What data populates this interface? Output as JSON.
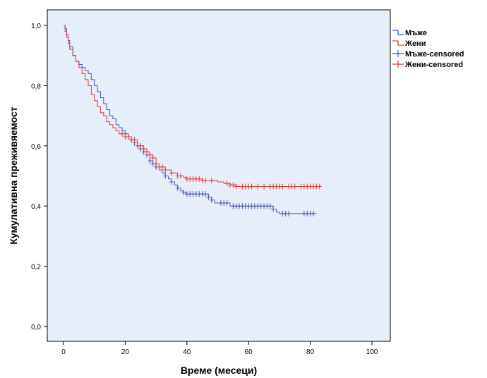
{
  "chart_data": {
    "type": "line",
    "subtype": "kaplan-meier",
    "xlabel": "Време (месеци)",
    "ylabel": "Кумулативна преживяемост",
    "xlim": [
      0,
      100
    ],
    "ylim": [
      0,
      1
    ],
    "x_ticks": [
      "0",
      "20",
      "40",
      "60",
      "80",
      "100"
    ],
    "y_ticks": [
      "0,0",
      "0,2",
      "0,4",
      "0,6",
      "0,8",
      "1,0"
    ],
    "grid": false,
    "legend_position": "right",
    "background": "#e6eef9",
    "series": [
      {
        "name": "Мъже",
        "color": "#4a5aa8",
        "steps": [
          [
            0,
            1.0
          ],
          [
            0.5,
            0.99
          ],
          [
            1,
            0.97
          ],
          [
            1.5,
            0.95
          ],
          [
            2,
            0.93
          ],
          [
            3,
            0.9
          ],
          [
            4,
            0.88
          ],
          [
            5,
            0.87
          ],
          [
            6,
            0.86
          ],
          [
            7,
            0.85
          ],
          [
            8,
            0.84
          ],
          [
            9,
            0.82
          ],
          [
            10,
            0.8
          ],
          [
            11,
            0.78
          ],
          [
            12,
            0.76
          ],
          [
            13,
            0.74
          ],
          [
            14,
            0.72
          ],
          [
            15,
            0.7
          ],
          [
            16,
            0.69
          ],
          [
            17,
            0.67
          ],
          [
            18,
            0.66
          ],
          [
            19,
            0.65
          ],
          [
            20,
            0.64
          ],
          [
            21,
            0.63
          ],
          [
            22,
            0.62
          ],
          [
            23,
            0.61
          ],
          [
            24,
            0.6
          ],
          [
            25,
            0.59
          ],
          [
            26,
            0.58
          ],
          [
            27,
            0.57
          ],
          [
            28,
            0.55
          ],
          [
            29,
            0.54
          ],
          [
            30,
            0.53
          ],
          [
            31,
            0.52
          ],
          [
            32,
            0.51
          ],
          [
            33,
            0.5
          ],
          [
            34,
            0.49
          ],
          [
            35,
            0.48
          ],
          [
            36,
            0.47
          ],
          [
            37,
            0.46
          ],
          [
            38,
            0.45
          ],
          [
            39,
            0.445
          ],
          [
            40,
            0.44
          ],
          [
            47,
            0.43
          ],
          [
            48,
            0.42
          ],
          [
            49,
            0.41
          ],
          [
            54,
            0.4
          ],
          [
            68,
            0.39
          ],
          [
            69,
            0.38
          ],
          [
            70,
            0.375
          ],
          [
            82,
            0.375
          ]
        ],
        "censored_x": [
          20,
          21,
          22,
          23,
          24,
          25,
          26,
          27,
          28,
          29,
          30,
          33,
          35,
          37,
          39,
          40,
          41,
          42,
          43,
          44,
          45,
          46,
          47,
          48,
          51,
          52,
          53,
          55,
          56,
          57,
          58,
          59,
          60,
          61,
          62,
          63,
          64,
          65,
          66,
          67,
          68,
          71,
          72,
          73,
          78,
          79,
          80,
          81
        ]
      },
      {
        "name": "Жени",
        "color": "#e03a3a",
        "steps": [
          [
            0,
            1.0
          ],
          [
            0.5,
            0.98
          ],
          [
            1,
            0.96
          ],
          [
            1.5,
            0.94
          ],
          [
            2,
            0.92
          ],
          [
            3,
            0.9
          ],
          [
            4,
            0.88
          ],
          [
            5,
            0.86
          ],
          [
            6,
            0.84
          ],
          [
            7,
            0.82
          ],
          [
            8,
            0.8
          ],
          [
            9,
            0.77
          ],
          [
            10,
            0.75
          ],
          [
            11,
            0.73
          ],
          [
            12,
            0.71
          ],
          [
            13,
            0.7
          ],
          [
            14,
            0.68
          ],
          [
            15,
            0.67
          ],
          [
            16,
            0.66
          ],
          [
            17,
            0.65
          ],
          [
            18,
            0.64
          ],
          [
            19,
            0.64
          ],
          [
            20,
            0.63
          ],
          [
            21,
            0.63
          ],
          [
            22,
            0.62
          ],
          [
            24,
            0.6
          ],
          [
            26,
            0.59
          ],
          [
            27,
            0.58
          ],
          [
            28,
            0.57
          ],
          [
            29,
            0.56
          ],
          [
            30,
            0.54
          ],
          [
            31,
            0.53
          ],
          [
            33,
            0.52
          ],
          [
            35,
            0.51
          ],
          [
            37,
            0.5
          ],
          [
            39,
            0.495
          ],
          [
            40,
            0.49
          ],
          [
            45,
            0.485
          ],
          [
            50,
            0.48
          ],
          [
            52,
            0.475
          ],
          [
            54,
            0.47
          ],
          [
            56,
            0.465
          ],
          [
            83,
            0.465
          ]
        ],
        "censored_x": [
          19,
          20,
          21,
          22,
          23,
          24,
          25,
          26,
          27,
          28,
          29,
          30,
          31,
          32,
          33,
          35,
          37,
          38,
          40,
          41,
          42,
          43,
          44,
          45,
          46,
          48,
          53,
          54,
          55,
          56,
          58,
          59,
          60,
          61,
          63,
          65,
          67,
          68,
          69,
          70,
          71,
          73,
          74,
          75,
          77,
          78,
          79,
          80,
          81,
          82,
          83
        ]
      }
    ],
    "legend": [
      {
        "label": "Мъже",
        "kind": "step",
        "color": "#4a5aa8"
      },
      {
        "label": "Жени",
        "kind": "step",
        "color": "#e03a3a"
      },
      {
        "label": "Мъже-censored",
        "kind": "censor",
        "color": "#4a5aa8"
      },
      {
        "label": "Жени-censored",
        "kind": "censor",
        "color": "#e03a3a"
      }
    ]
  }
}
